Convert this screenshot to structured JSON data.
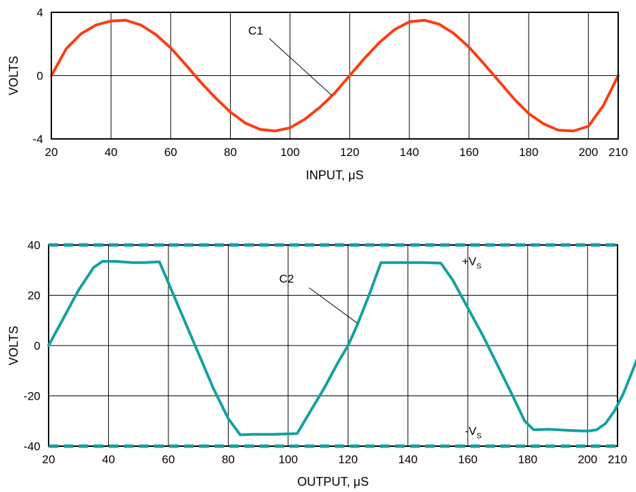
{
  "colors": {
    "input_curve": "#ff3b0f",
    "output_curve": "#14a0a0",
    "grid": "#000000"
  },
  "chart_data": [
    {
      "type": "line",
      "title": "",
      "xlabel": "INPUT, μS",
      "ylabel": "VOLTS",
      "xlim": [
        20,
        210
      ],
      "ylim": [
        -4,
        4
      ],
      "xticks": [
        "20",
        "40",
        "60",
        "80",
        "100",
        "120",
        "140",
        "160",
        "180",
        "200",
        "210"
      ],
      "yticks": [
        "4",
        "0",
        "-4"
      ],
      "series": [
        {
          "name": "C1",
          "x": [
            20,
            25,
            30,
            35,
            40,
            45,
            50,
            55,
            60,
            65,
            70,
            75,
            80,
            85,
            90,
            95,
            100,
            105,
            110,
            115,
            120,
            125,
            130,
            135,
            140,
            145,
            150,
            155,
            160,
            165,
            170,
            175,
            180,
            185,
            190,
            195,
            200,
            205,
            210
          ],
          "y": [
            0,
            1.7,
            2.65,
            3.2,
            3.45,
            3.5,
            3.2,
            2.6,
            1.75,
            0.7,
            -0.4,
            -1.4,
            -2.3,
            -3.0,
            -3.4,
            -3.5,
            -3.3,
            -2.75,
            -2.0,
            -1.1,
            0,
            1.1,
            2.1,
            2.9,
            3.4,
            3.5,
            3.25,
            2.65,
            1.8,
            0.75,
            -0.35,
            -1.45,
            -2.4,
            -3.05,
            -3.45,
            -3.5,
            -3.2,
            -1.9,
            0
          ]
        }
      ]
    },
    {
      "type": "line",
      "title": "",
      "xlabel": "OUTPUT, μS",
      "ylabel": "VOLTS",
      "xlim": [
        20,
        210
      ],
      "ylim": [
        -40,
        40
      ],
      "xticks": [
        "20",
        "40",
        "60",
        "80",
        "100",
        "120",
        "140",
        "160",
        "180",
        "200",
        "210"
      ],
      "yticks": [
        "40",
        "20",
        "0",
        "-20",
        "-40"
      ],
      "series": [
        {
          "name": "C2",
          "x": [
            20,
            25,
            30,
            35,
            38,
            42,
            48,
            52,
            57,
            60,
            65,
            70,
            75,
            80,
            84,
            88,
            95,
            103,
            107,
            112,
            117,
            120,
            123,
            127,
            131,
            135,
            145,
            151,
            155,
            160,
            165,
            170,
            175,
            179,
            182,
            187,
            195,
            200,
            203,
            206,
            209,
            212,
            215,
            218
          ],
          "y": [
            0,
            11,
            22,
            31,
            33.5,
            33.5,
            33,
            33,
            33.3,
            25,
            11,
            -3,
            -17,
            -29,
            -35.5,
            -35.3,
            -35.3,
            -35,
            -27,
            -17,
            -6,
            0,
            8,
            20,
            33,
            33,
            33,
            32.8,
            26,
            15,
            4,
            -8,
            -20,
            -30,
            -33.5,
            -33.3,
            -33.8,
            -34,
            -33.5,
            -31,
            -26,
            -19,
            -10,
            -1
          ]
        },
        {
          "name": "+V",
          "subscript": "S",
          "y_const": 40
        },
        {
          "name": "-V",
          "subscript": "S",
          "y_const": -40
        }
      ]
    }
  ]
}
